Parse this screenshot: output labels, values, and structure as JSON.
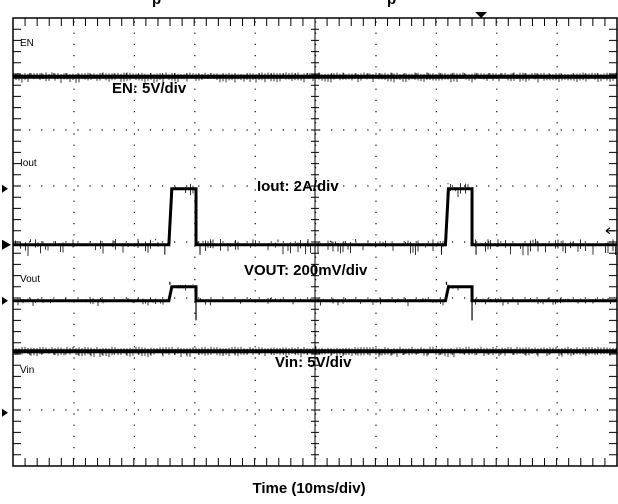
{
  "chart_data": {
    "type": "line",
    "title_fragments": [
      "p",
      "p"
    ],
    "xlabel_prefix": "Time (10ms/",
    "xlabel_unit": "div",
    "xlabel_suffix": ")",
    "x_range_ms": [
      0,
      100
    ],
    "divisions": {
      "x": 10,
      "y": 8
    },
    "grid": true,
    "channels": [
      {
        "name": "EN",
        "scale_label": "EN: 5V/div",
        "type": "constant",
        "level_div": 6.95
      },
      {
        "name": "Iout",
        "scale_label": "Iout: 2A/div",
        "type": "pulse",
        "base_div": 3.95,
        "high_div": 4.95,
        "pulses_ms": [
          [
            25.8,
            30.3
          ],
          [
            71.6,
            76.0
          ]
        ],
        "noise": true
      },
      {
        "name": "Vout",
        "scale_label": "VOUT: 200mV/div",
        "type": "pulse",
        "base_div": 2.95,
        "high_div": 3.2,
        "pulses_ms": [
          [
            25.8,
            30.3
          ],
          [
            71.6,
            76.0
          ]
        ],
        "undershoot_div": 2.6,
        "noise": false
      },
      {
        "name": "Vin",
        "scale_label": "Vin: 5V/div",
        "type": "constant",
        "level_div": 2.05
      }
    ]
  }
}
